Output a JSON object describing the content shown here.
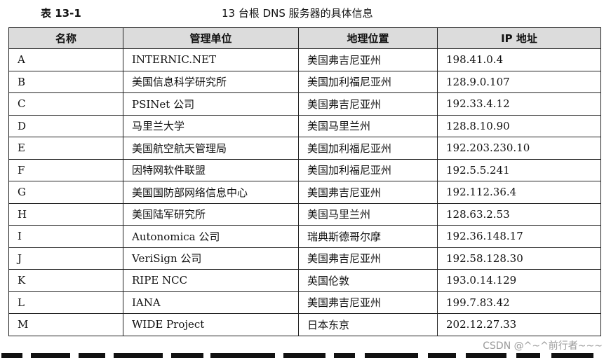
{
  "caption": {
    "label": "表 13-1",
    "title": "13 台根 DNS 服务器的具体信息"
  },
  "table": {
    "headers": [
      "名称",
      "管理单位",
      "地理位置",
      "IP 地址"
    ],
    "rows": [
      [
        "A",
        "INTERNIC.NET",
        "美国弗吉尼亚州",
        "198.41.0.4"
      ],
      [
        "B",
        "美国信息科学研究所",
        "美国加利福尼亚州",
        "128.9.0.107"
      ],
      [
        "C",
        "PSINet 公司",
        "美国弗吉尼亚州",
        "192.33.4.12"
      ],
      [
        "D",
        "马里兰大学",
        "美国马里兰州",
        "128.8.10.90"
      ],
      [
        "E",
        "美国航空航天管理局",
        "美国加利福尼亚州",
        "192.203.230.10"
      ],
      [
        "F",
        "因特网软件联盟",
        "美国加利福尼亚州",
        "192.5.5.241"
      ],
      [
        "G",
        "美国国防部网络信息中心",
        "美国弗吉尼亚州",
        "192.112.36.4"
      ],
      [
        "H",
        "美国陆军研究所",
        "美国马里兰州",
        "128.63.2.53"
      ],
      [
        "I",
        "Autonomica 公司",
        "瑞典斯德哥尔摩",
        "192.36.148.17"
      ],
      [
        "J",
        "VeriSign 公司",
        "美国弗吉尼亚州",
        "192.58.128.30"
      ],
      [
        "K",
        "RIPE NCC",
        "英国伦敦",
        "193.0.14.129"
      ],
      [
        "L",
        "IANA",
        "美国弗吉尼亚州",
        "199.7.83.42"
      ],
      [
        "M",
        "WIDE Project",
        "日本东京",
        "202.12.27.33"
      ]
    ]
  },
  "watermark": "CSDN @^~^前行者~~~"
}
